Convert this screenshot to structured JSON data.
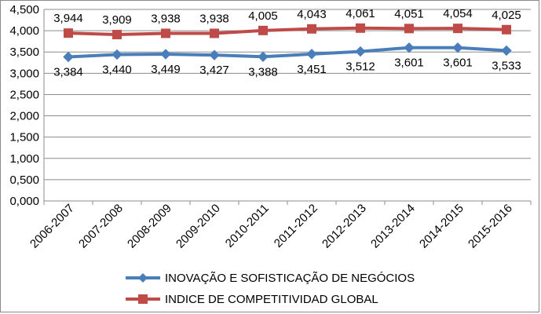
{
  "chart_data": {
    "type": "line",
    "categories": [
      "2006-2007",
      "2007-2008",
      "2008-2009",
      "2009-2010",
      "2010-2011",
      "2011-2012",
      "2012-2013",
      "2013-2014",
      "2014-2015",
      "2015-2016"
    ],
    "series": [
      {
        "name": "INOVAÇÃO E SOFISTICAÇÃO DE NEGÓCIOS",
        "values": [
          3.384,
          3.44,
          3.449,
          3.427,
          3.388,
          3.451,
          3.512,
          3.601,
          3.601,
          3.533
        ],
        "labels": [
          "3,384",
          "3,440",
          "3,449",
          "3,427",
          "3,388",
          "3,451",
          "3,512",
          "3,601",
          "3,601",
          "3,533"
        ],
        "color": "#4a7ebb",
        "marker": "diamond",
        "label_position": "below"
      },
      {
        "name": "INDICE DE COMPETITIVIDAD GLOBAL",
        "values": [
          3.944,
          3.909,
          3.938,
          3.938,
          4.005,
          4.043,
          4.061,
          4.051,
          4.054,
          4.025
        ],
        "labels": [
          "3,944",
          "3,909",
          "3,938",
          "3,938",
          "4,005",
          "4,043",
          "4,061",
          "4,051",
          "4,054",
          "4,025"
        ],
        "color": "#be4b48",
        "marker": "square",
        "label_position": "above"
      }
    ],
    "y_ticks": [
      0,
      0.5,
      1,
      1.5,
      2,
      2.5,
      3,
      3.5,
      4,
      4.5
    ],
    "y_tick_labels": [
      "0,000",
      "0,500",
      "1,000",
      "1,500",
      "2,000",
      "2,500",
      "3,000",
      "3,500",
      "4,000",
      "4,500"
    ],
    "ylim": [
      0,
      4.5
    ],
    "grid": true,
    "legend_position": "bottom",
    "title": "",
    "xlabel": "",
    "ylabel": ""
  }
}
